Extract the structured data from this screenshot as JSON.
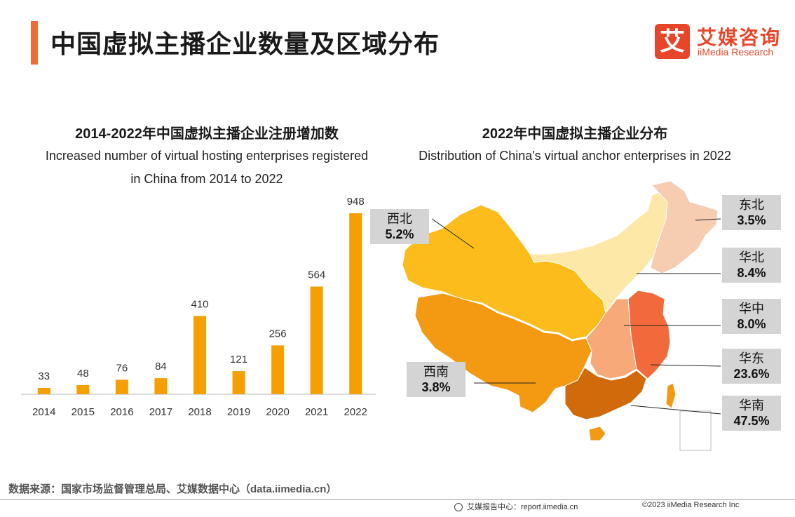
{
  "header": {
    "title": "中国虚拟主播企业数量及区域分布",
    "logo_mark": "艾",
    "logo_cn": "艾媒咨询",
    "logo_en": "iiMedia Research"
  },
  "left_chart": {
    "title_cn": "2014-2022年中国虚拟主播企业注册增加数",
    "title_en_line1": "Increased number of virtual hosting enterprises registered",
    "title_en_line2": "in China from 2014 to 2022"
  },
  "right_chart": {
    "title_cn": "2022年中国虚拟主播企业分布",
    "title_en": "Distribution of China's virtual anchor enterprises in 2022"
  },
  "chart_data": [
    {
      "type": "bar",
      "categories": [
        "2014",
        "2015",
        "2016",
        "2017",
        "2018",
        "2019",
        "2020",
        "2021",
        "2022"
      ],
      "values": [
        33,
        48,
        76,
        84,
        410,
        121,
        256,
        564,
        948
      ],
      "title": "2014-2022年中国虚拟主播企业注册增加数",
      "ylim": [
        0,
        948
      ],
      "grid": false,
      "bar_color": "#f5a000"
    },
    {
      "type": "pie",
      "title": "2022年中国虚拟主播企业分布",
      "categories": [
        "东北",
        "华北",
        "华中",
        "华东",
        "华南",
        "西北",
        "西南"
      ],
      "values": [
        3.5,
        8.4,
        8.0,
        23.6,
        47.5,
        5.2,
        3.8
      ],
      "labels": [
        "3.5%",
        "8.4%",
        "8.0%",
        "23.6%",
        "47.5%",
        "5.2%",
        "3.8%"
      ],
      "colors": {
        "东北": "#f6cdb0",
        "华北": "#fde8a8",
        "华中": "#f7a97a",
        "华东": "#f26a3c",
        "华南": "#d06a0a",
        "西北": "#fbbc1c",
        "西南": "#f39a12"
      }
    }
  ],
  "footer": {
    "source": "数据来源：国家市场监督管理总局、艾媒数据中心（data.iimedia.cn）",
    "report_site": "艾媒报告中心：report.iimedia.cn",
    "copyright": "©2023  iiMedia Research  Inc"
  }
}
